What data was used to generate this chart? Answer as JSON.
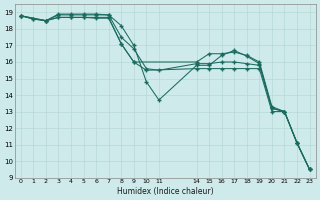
{
  "xlabel": "Humidex (Indice chaleur)",
  "background_color": "#ceeaea",
  "grid_color": "#b8d8d8",
  "line_color": "#1a6b5e",
  "ylim": [
    9,
    19.5
  ],
  "xlim": [
    -0.5,
    23.5
  ],
  "yticks": [
    9,
    10,
    11,
    12,
    13,
    14,
    15,
    16,
    17,
    18,
    19
  ],
  "xtick_positions": [
    0,
    1,
    2,
    3,
    4,
    5,
    6,
    7,
    8,
    9,
    10,
    11,
    14,
    15,
    16,
    17,
    18,
    19,
    20,
    21,
    22,
    23
  ],
  "xtick_labels": [
    "0",
    "1",
    "2",
    "3",
    "4",
    "5",
    "6",
    "7",
    "8",
    "9",
    "10",
    "11",
    "14",
    "15",
    "16",
    "17",
    "18",
    "19",
    "20",
    "21",
    "22",
    "23"
  ],
  "lines": [
    {
      "x": [
        0,
        1,
        2,
        3,
        4,
        5,
        6,
        7,
        8,
        9,
        10,
        11,
        14,
        15,
        16,
        17,
        18,
        19,
        20,
        21,
        22,
        23
      ],
      "y": [
        18.8,
        18.6,
        18.5,
        18.9,
        18.9,
        18.9,
        18.9,
        18.85,
        18.2,
        17.0,
        14.8,
        13.7,
        15.8,
        15.8,
        16.4,
        16.7,
        16.35,
        15.9,
        13.2,
        13.0,
        11.1,
        9.5
      ]
    },
    {
      "x": [
        0,
        1,
        2,
        3,
        4,
        5,
        6,
        7,
        8,
        9,
        10,
        11,
        14,
        15,
        16,
        17,
        18,
        19,
        20,
        21,
        22,
        23
      ],
      "y": [
        18.8,
        18.6,
        18.5,
        18.85,
        18.85,
        18.85,
        18.85,
        18.85,
        17.5,
        16.8,
        15.6,
        15.5,
        15.9,
        15.9,
        16.0,
        16.0,
        15.9,
        15.8,
        13.2,
        13.0,
        11.1,
        9.5
      ]
    },
    {
      "x": [
        0,
        2,
        3,
        4,
        5,
        6,
        7,
        8,
        9,
        14,
        15,
        16,
        17,
        18,
        19,
        20,
        21,
        22,
        23
      ],
      "y": [
        18.8,
        18.5,
        18.7,
        18.7,
        18.7,
        18.65,
        18.65,
        17.1,
        16.0,
        16.0,
        16.5,
        16.5,
        16.6,
        16.4,
        16.0,
        13.3,
        13.0,
        11.1,
        9.5
      ]
    },
    {
      "x": [
        0,
        2,
        3,
        4,
        5,
        6,
        7,
        8,
        9,
        10,
        14,
        15,
        16,
        17,
        18,
        19,
        20,
        21,
        22,
        23
      ],
      "y": [
        18.8,
        18.5,
        18.7,
        18.7,
        18.7,
        18.7,
        18.7,
        17.1,
        16.0,
        15.5,
        15.6,
        15.6,
        15.6,
        15.6,
        15.6,
        15.6,
        13.0,
        13.0,
        11.1,
        9.5
      ]
    }
  ]
}
